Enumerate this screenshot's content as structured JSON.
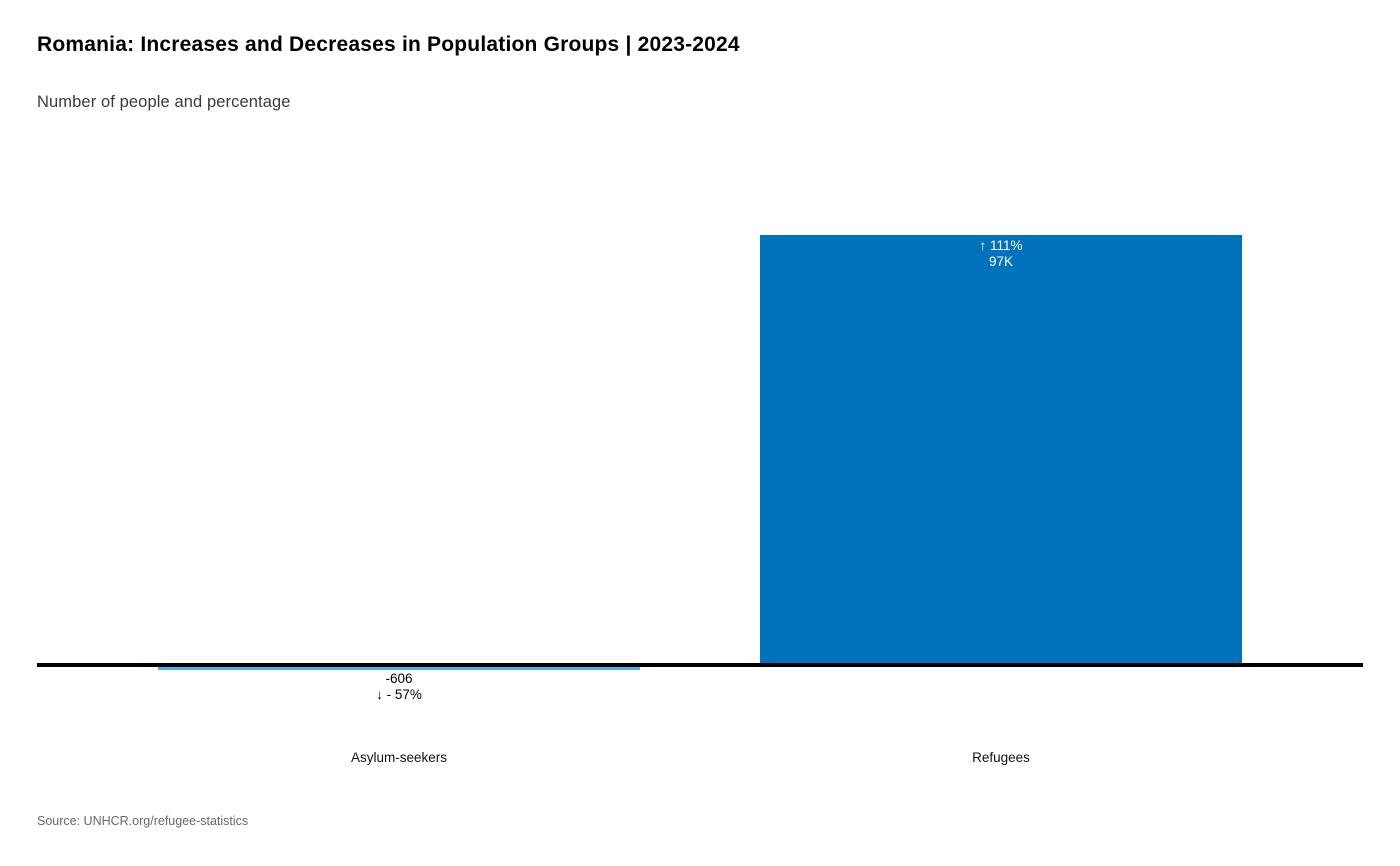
{
  "chart_data": {
    "type": "bar",
    "title": "Romania: Increases and Decreases in Population Groups | 2023-2024",
    "subtitle": "Number of people and percentage",
    "categories": [
      "Asylum-seekers",
      "Refugees"
    ],
    "values": [
      -606,
      97000
    ],
    "ylim": [
      -606,
      97000
    ],
    "grid": false,
    "legend": false,
    "axis_line_color": "#000000",
    "series": [
      {
        "name": "Asylum-seekers",
        "value": -606,
        "value_label": "-606",
        "pct_label": "↓ - 57%",
        "bar_color": "#41B6E6",
        "label_position": "below-bar",
        "label_color": "#000000"
      },
      {
        "name": "Refugees",
        "value": 97000,
        "value_label": "97K",
        "pct_label": "↑ 111%",
        "bar_color": "#0072BC",
        "label_position": "inside-top",
        "label_color": "#FFFFFF"
      }
    ],
    "source": "Source: UNHCR.org/refugee-statistics"
  }
}
